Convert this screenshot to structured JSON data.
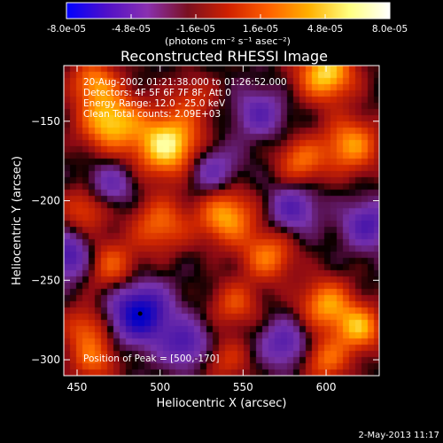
{
  "colorbar": {
    "ticks": [
      "-8.0e-05",
      "-4.8e-05",
      "-1.6e-05",
      "1.6e-05",
      "4.8e-05",
      "8.0e-05"
    ],
    "unit_label": "(photons cm⁻² s⁻¹ asec⁻²)",
    "range": [
      -8e-05,
      8e-05
    ],
    "colors": [
      "#0000ff",
      "#5010c8",
      "#8a30b0",
      "#7a1020",
      "#d02000",
      "#ff6000",
      "#ffb000",
      "#ffff80",
      "#ffffff"
    ]
  },
  "chart_data": {
    "type": "heatmap",
    "title": "Reconstructed RHESSI Image",
    "xlabel": "Heliocentric X (arcsec)",
    "ylabel": "Heliocentric Y (arcsec)",
    "xlim": [
      442,
      632
    ],
    "ylim": [
      -310,
      -115
    ],
    "x_ticks": [
      450,
      500,
      550,
      600
    ],
    "y_ticks": [
      -150,
      -200,
      -250,
      -300
    ],
    "annotations": [
      "20-Aug-2002 01:21:38.000 to 01:26:52.000",
      "Detectors: 4F 5F 6F 7F 8F, Att 0",
      "Energy Range: 12.0 - 25.0 keV",
      "Clean      Total counts: 2.09E+03"
    ],
    "peak_label": "Position of Peak = [500,-170]",
    "peak_position": [
      500,
      -170
    ],
    "marker_position": [
      488,
      -271
    ],
    "blobs": [
      [
        505,
        -165,
        1.0,
        14
      ],
      [
        470,
        -150,
        0.85,
        13
      ],
      [
        460,
        -125,
        0.6,
        10
      ],
      [
        520,
        -135,
        0.3,
        10
      ],
      [
        600,
        -120,
        0.9,
        12
      ],
      [
        615,
        -165,
        0.7,
        12
      ],
      [
        585,
        -175,
        0.55,
        10
      ],
      [
        500,
        -215,
        0.55,
        12
      ],
      [
        540,
        -210,
        0.75,
        12
      ],
      [
        565,
        -235,
        0.6,
        11
      ],
      [
        455,
        -205,
        0.45,
        10
      ],
      [
        470,
        -240,
        0.5,
        11
      ],
      [
        545,
        -265,
        0.45,
        10
      ],
      [
        600,
        -265,
        0.7,
        11
      ],
      [
        620,
        -280,
        0.75,
        10
      ],
      [
        600,
        -300,
        0.55,
        10
      ],
      [
        455,
        -280,
        0.45,
        10
      ],
      [
        460,
        -300,
        0.5,
        10
      ],
      [
        540,
        -300,
        0.35,
        10
      ],
      [
        488,
        -271,
        -1.0,
        12
      ],
      [
        515,
        -290,
        -0.55,
        10
      ],
      [
        445,
        -235,
        -0.6,
        10
      ],
      [
        530,
        -180,
        -0.45,
        11
      ],
      [
        580,
        -205,
        -0.5,
        10
      ],
      [
        575,
        -290,
        -0.5,
        10
      ],
      [
        625,
        -215,
        -0.55,
        10
      ],
      [
        470,
        -190,
        -0.4,
        10
      ],
      [
        560,
        -145,
        -0.45,
        10
      ]
    ]
  },
  "footer": {
    "timestamp": "2-May-2013 11:17"
  }
}
